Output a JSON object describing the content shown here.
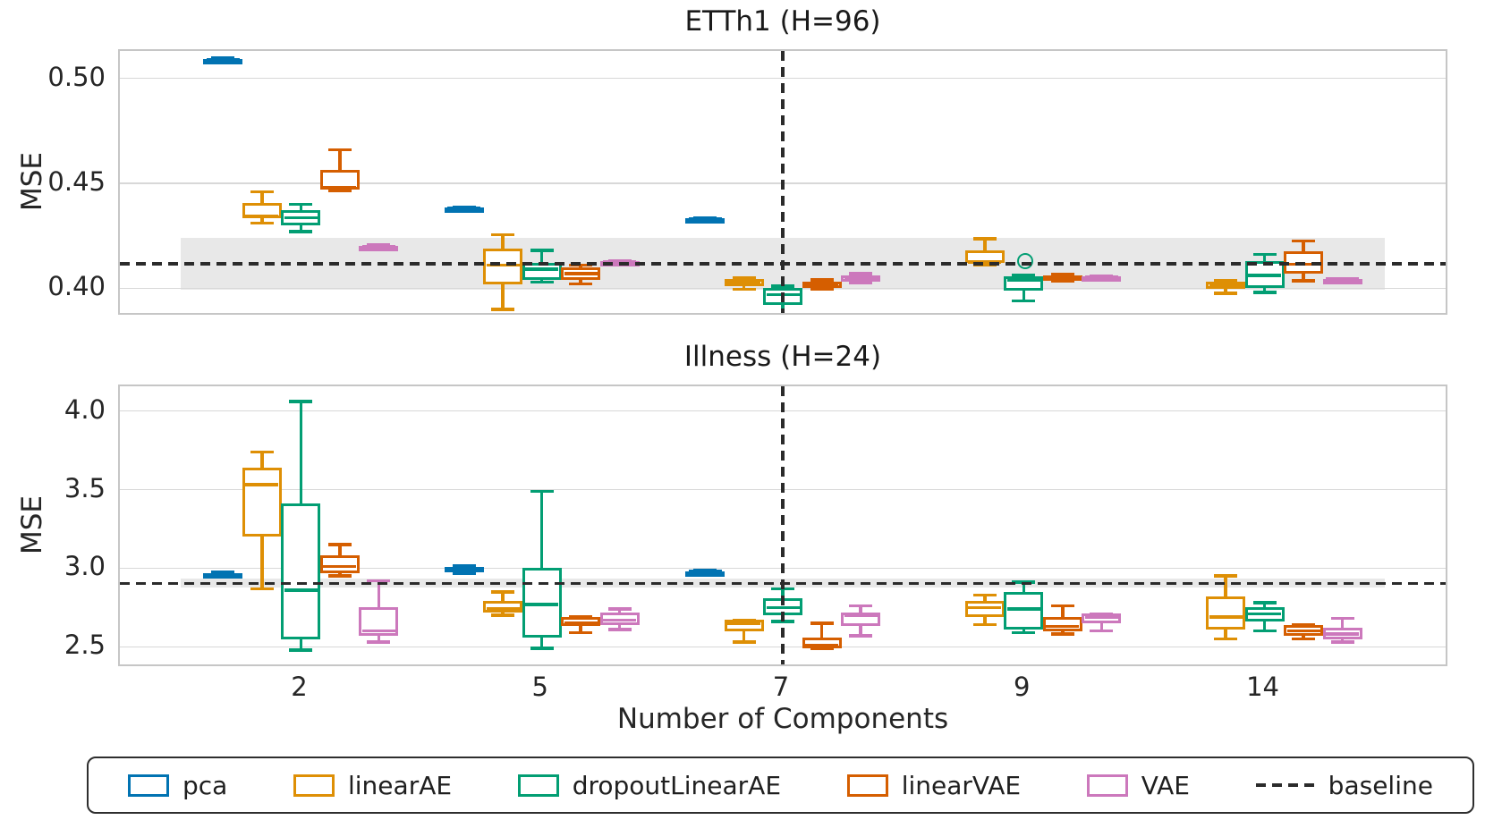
{
  "chart_data": {
    "type": "grouped-boxplot",
    "xlabel": "Number of Components",
    "categories": [
      "2",
      "5",
      "7",
      "9",
      "14"
    ],
    "legend": [
      {
        "label": "pca",
        "color": "#0173B2",
        "glyph": "box"
      },
      {
        "label": "linearAE",
        "color": "#DE8F05",
        "glyph": "box"
      },
      {
        "label": "dropoutLinearAE",
        "color": "#029E73",
        "glyph": "box"
      },
      {
        "label": "linearVAE",
        "color": "#D55E00",
        "glyph": "box"
      },
      {
        "label": "VAE",
        "color": "#CC78BC",
        "glyph": "box"
      },
      {
        "label": "baseline",
        "color": "#2b2b2b",
        "glyph": "dashed-line"
      }
    ],
    "panels": [
      {
        "title": "ETTh1 (H=96)",
        "ylabel": "MSE",
        "ylim": [
          0.3882,
          0.513
        ],
        "yticks": [
          {
            "value": 0.4,
            "label": "0.40"
          },
          {
            "value": 0.45,
            "label": "0.45"
          },
          {
            "value": 0.5,
            "label": "0.50"
          }
        ],
        "baseline_value": 0.4115,
        "baseline_band": [
          0.3993,
          0.4238
        ],
        "series": [
          {
            "name": "pca",
            "color": "#0173B2",
            "boxes": [
              [
                0.5085,
                0.5087,
                0.509,
                0.5093,
                0.5095
              ],
              [
                0.4375,
                0.4377,
                0.438,
                0.4383,
                0.4385
              ],
              [
                0.4325,
                0.4327,
                0.433,
                0.4333,
                0.4335
              ],
              null,
              null
            ]
          },
          {
            "name": "linearAE",
            "color": "#DE8F05",
            "boxes": [
              [
                0.431,
                0.4335,
                0.4345,
                0.4405,
                0.446
              ],
              [
                0.39,
                0.402,
                0.411,
                0.419,
                0.4255
              ],
              [
                0.3995,
                0.401,
                0.4025,
                0.4045,
                0.405
              ],
              [
                0.411,
                0.412,
                0.4125,
                0.418,
                0.4235
              ],
              [
                0.3975,
                0.3995,
                0.401,
                0.403,
                0.4035
              ]
            ]
          },
          {
            "name": "dropoutLinearAE",
            "color": "#029E73",
            "boxes": [
              [
                0.427,
                0.43,
                0.4335,
                0.437,
                0.44
              ],
              [
                0.403,
                0.404,
                0.409,
                0.412,
                0.418
              ],
              [
                0.387,
                0.392,
                0.397,
                0.4,
                0.401
              ],
              [
                0.394,
                0.399,
                0.404,
                0.4055,
                0.406
              ],
              [
                0.398,
                0.4,
                0.406,
                0.413,
                0.416
              ]
            ]
          },
          {
            "name": "linearVAE",
            "color": "#D55E00",
            "boxes": [
              [
                0.4465,
                0.447,
                0.448,
                0.4565,
                0.466
              ],
              [
                0.402,
                0.404,
                0.407,
                0.41,
                0.411
              ],
              [
                0.3995,
                0.4,
                0.4015,
                0.403,
                0.404
              ],
              [
                0.4035,
                0.404,
                0.405,
                0.406,
                0.4065
              ],
              [
                0.4035,
                0.407,
                0.4115,
                0.4175,
                0.4225
              ]
            ]
          },
          {
            "name": "VAE",
            "color": "#CC78BC",
            "boxes": [
              [
                0.4195,
                0.4197,
                0.42,
                0.4203,
                0.4205
              ],
              [
                0.412,
                0.4122,
                0.4125,
                0.4128,
                0.413
              ],
              [
                0.4025,
                0.403,
                0.4045,
                0.406,
                0.407
              ],
              [
                0.405,
                0.4051,
                0.4053,
                0.4055,
                0.4056
              ],
              [
                0.404,
                0.4041,
                0.4043,
                0.4045,
                0.4046
              ]
            ]
          }
        ],
        "fliers": [
          {
            "series_index": 2,
            "category_index": 3,
            "value": 0.4137
          }
        ]
      },
      {
        "title": "Illness (H=24)",
        "ylabel": "MSE",
        "ylim": [
          2.388,
          4.157
        ],
        "yticks": [
          {
            "value": 2.5,
            "label": "2.5"
          },
          {
            "value": 3.0,
            "label": "3.0"
          },
          {
            "value": 3.5,
            "label": "3.5"
          },
          {
            "value": 4.0,
            "label": "4.0"
          }
        ],
        "baseline_value": 2.902,
        "baseline_band": [
          2.879,
          2.932
        ],
        "series": [
          {
            "name": "pca",
            "color": "#0173B2",
            "boxes": [
              [
                2.945,
                2.952,
                2.96,
                2.968,
                2.975
              ],
              [
                2.965,
                2.985,
                3.0,
                3.01,
                3.015
              ],
              [
                2.975,
                2.978,
                2.98,
                2.982,
                2.985
              ],
              null,
              null
            ]
          },
          {
            "name": "linearAE",
            "color": "#DE8F05",
            "boxes": [
              [
                2.87,
                3.2,
                3.53,
                3.64,
                3.74
              ],
              [
                2.7,
                2.72,
                2.74,
                2.79,
                2.85
              ],
              [
                2.53,
                2.6,
                2.65,
                2.67,
                2.67
              ],
              [
                2.64,
                2.69,
                2.75,
                2.79,
                2.83
              ],
              [
                2.55,
                2.61,
                2.69,
                2.82,
                2.95
              ]
            ]
          },
          {
            "name": "dropoutLinearAE",
            "color": "#029E73",
            "boxes": [
              [
                2.48,
                2.55,
                2.86,
                3.41,
                4.06
              ],
              [
                2.49,
                2.56,
                2.77,
                3.0,
                3.49
              ],
              [
                2.66,
                2.7,
                2.75,
                2.81,
                2.87
              ],
              [
                2.59,
                2.61,
                2.74,
                2.85,
                2.91
              ],
              [
                2.6,
                2.66,
                2.71,
                2.75,
                2.78
              ]
            ]
          },
          {
            "name": "linearVAE",
            "color": "#D55E00",
            "boxes": [
              [
                2.95,
                2.97,
                3.01,
                3.08,
                3.15
              ],
              [
                2.59,
                2.63,
                2.65,
                2.69,
                2.69
              ],
              [
                2.49,
                2.49,
                2.51,
                2.56,
                2.65
              ],
              [
                2.58,
                2.6,
                2.63,
                2.69,
                2.76
              ],
              [
                2.55,
                2.57,
                2.6,
                2.64,
                2.64
              ]
            ]
          },
          {
            "name": "VAE",
            "color": "#CC78BC",
            "boxes": [
              [
                2.53,
                2.57,
                2.6,
                2.75,
                2.92
              ],
              [
                2.61,
                2.64,
                2.67,
                2.72,
                2.74
              ],
              [
                2.57,
                2.63,
                2.7,
                2.72,
                2.76
              ],
              [
                2.6,
                2.65,
                2.69,
                2.71,
                2.71
              ],
              [
                2.53,
                2.55,
                2.58,
                2.62,
                2.68
              ]
            ]
          }
        ],
        "fliers": []
      }
    ]
  }
}
